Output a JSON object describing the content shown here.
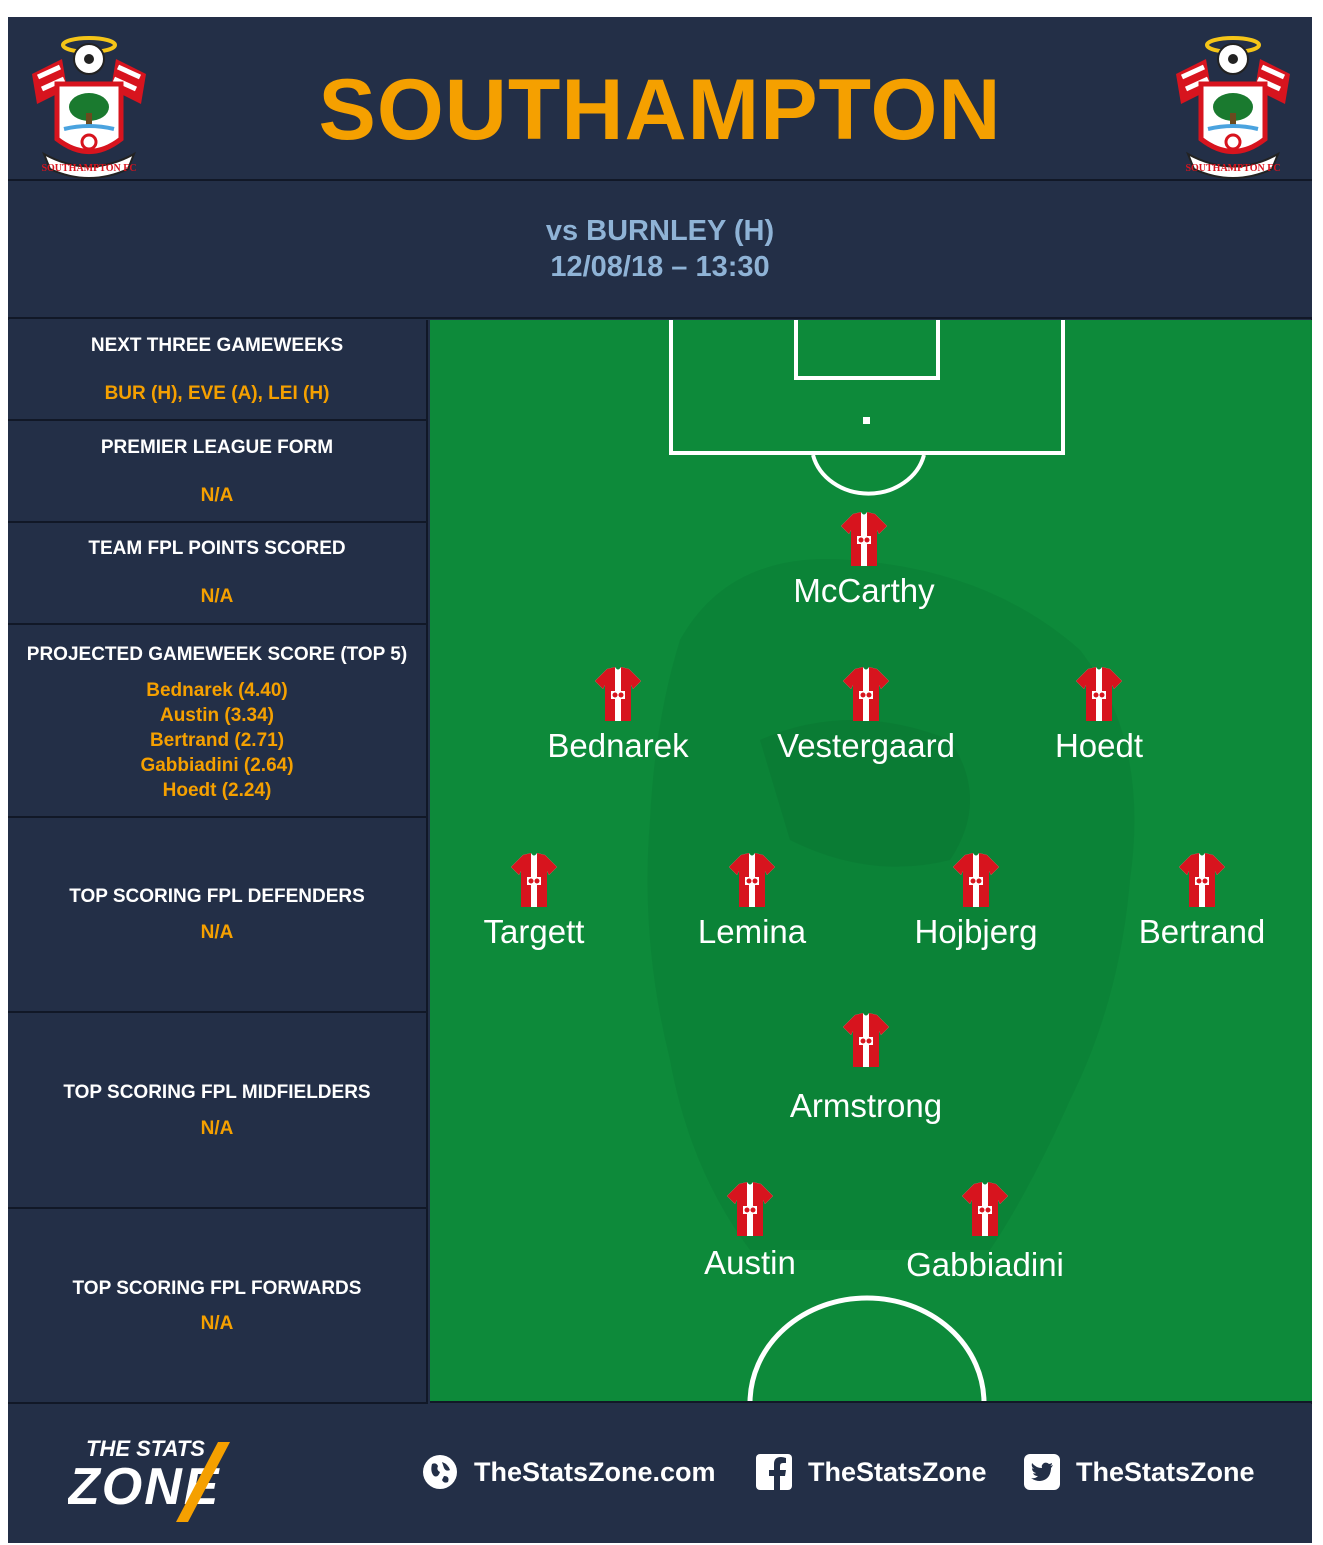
{
  "header": {
    "team": "SOUTHAMPTON",
    "crest_text": "SOUTHAMPTON FC"
  },
  "fixture": {
    "opponent": "vs BURNLEY (H)",
    "datetime": "12/08/18 – 13:30"
  },
  "panels": [
    {
      "title": "NEXT THREE GAMEWEEKS",
      "value": "BUR (H), EVE (A), LEI (H)"
    },
    {
      "title": "PREMIER LEAGUE FORM",
      "value": "N/A"
    },
    {
      "title": "TEAM FPL POINTS SCORED",
      "value": "N/A"
    },
    {
      "title": "PROJECTED GAMEWEEK SCORE (TOP 5)",
      "list": [
        "Bednarek (4.40)",
        "Austin (3.34)",
        "Bertrand (2.71)",
        "Gabbiadini (2.64)",
        "Hoedt (2.24)"
      ]
    },
    {
      "title": "TOP SCORING FPL DEFENDERS",
      "value": "N/A"
    },
    {
      "title": "TOP SCORING FPL MIDFIELDERS",
      "value": "N/A"
    },
    {
      "title": "TOP SCORING FPL FORWARDS",
      "value": "N/A"
    }
  ],
  "lineup": {
    "goalkeeper": [
      "McCarthy"
    ],
    "defenders": [
      "Bednarek",
      "Vestergaard",
      "Hoedt"
    ],
    "midfielders": [
      "Targett",
      "Lemina",
      "Hojbjerg",
      "Bertrand"
    ],
    "attacking_mid": [
      "Armstrong"
    ],
    "forwards": [
      "Austin",
      "Gabbiadini"
    ]
  },
  "footer": {
    "logo_text": [
      "THE STATS",
      "ZONE"
    ],
    "website": "TheStatsZone.com",
    "facebook": "TheStatsZone",
    "twitter": "TheStatsZone",
    "icons": [
      "globe-icon",
      "facebook-icon",
      "twitter-icon"
    ]
  },
  "colors": {
    "accent": "#f5a000",
    "panel": "#232f47",
    "pitch": "#0d8a3a",
    "fixture_text": "#8fb3d6",
    "shirt_red": "#d7141e"
  }
}
